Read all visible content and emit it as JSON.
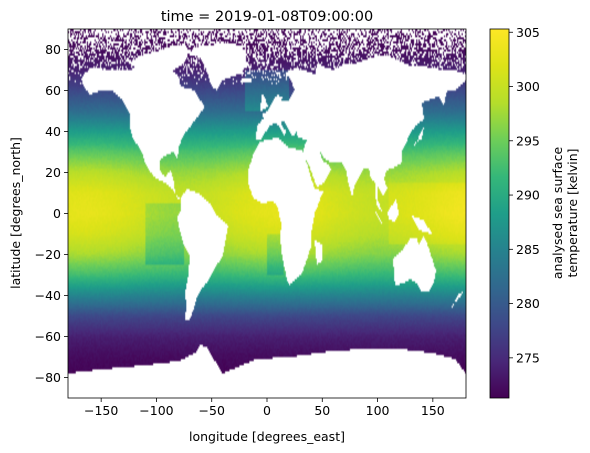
{
  "chart_data": {
    "type": "heatmap",
    "title": "time = 2019-01-08T09:00:00",
    "xlabel": "longitude [degrees_east]",
    "ylabel": "latitude [degrees_north]",
    "xlim": [
      -180,
      180
    ],
    "ylim": [
      -90,
      90
    ],
    "xticks": [
      -150,
      -100,
      -50,
      0,
      50,
      100,
      150
    ],
    "yticks": [
      -80,
      -60,
      -40,
      -20,
      0,
      20,
      40,
      60,
      80
    ],
    "xtick_labels": [
      "−150",
      "−100",
      "−50",
      "0",
      "50",
      "100",
      "150"
    ],
    "ytick_labels": [
      "−80",
      "−60",
      "−40",
      "−20",
      "0",
      "20",
      "40",
      "60",
      "80"
    ],
    "colorbar": {
      "label_line1": "analysed sea surface",
      "label_line2": "temperature [kelvin]",
      "range": [
        271.3,
        305.3
      ],
      "ticks": [
        275,
        280,
        285,
        290,
        295,
        300,
        305
      ],
      "tick_labels": [
        "275",
        "280",
        "285",
        "290",
        "295",
        "300",
        "305"
      ],
      "colormap": "viridis"
    },
    "missing_value_color": "#ffffff",
    "grid": false,
    "sst_profile": {
      "lat": [
        -90,
        -78,
        -72,
        -68,
        -60,
        -50,
        -40,
        -30,
        -20,
        -10,
        0,
        10,
        20,
        30,
        40,
        50,
        60,
        70,
        80,
        90
      ],
      "kelvin": [
        271.3,
        271.5,
        272,
        272.5,
        274,
        278,
        285,
        292,
        297,
        300,
        301.5,
        301,
        298,
        293.5,
        288,
        282,
        278,
        274,
        272,
        271.5
      ]
    }
  }
}
